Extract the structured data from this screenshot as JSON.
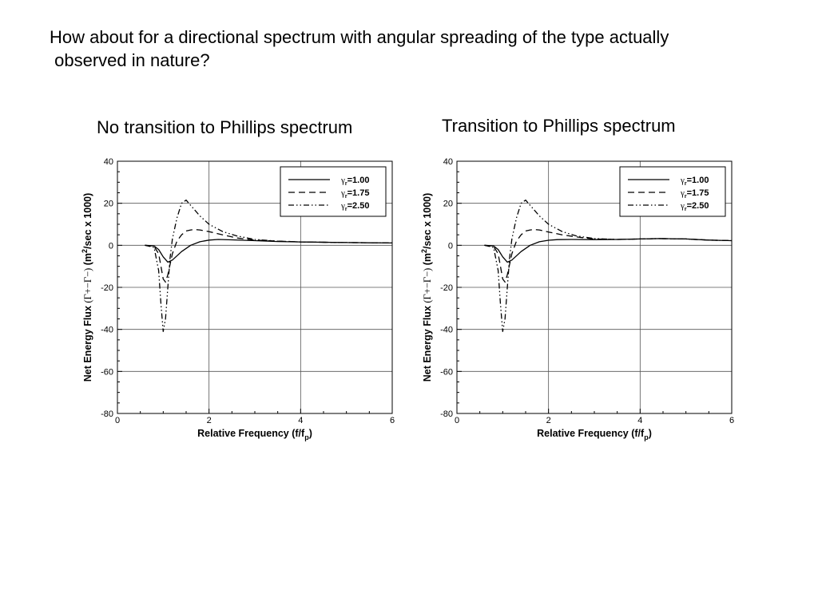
{
  "slide": {
    "title": "How about for a directional spectrum with angular spreading of the type actually\n observed in nature?"
  },
  "chart_data": [
    {
      "type": "line",
      "title": "No transition to Phillips spectrum",
      "xlabel": "Relative Frequency (f/fp)",
      "xlabel_main": "Relative Frequency (f/f",
      "xlabel_sub": "p",
      "xlabel_end": ")",
      "ylabel": "Net Energy Flux (Γ+−Γ−) (m2/sec x 1000)",
      "ylabel_main": "Net Energy Flux",
      "ylabel_gamma": "(Γ+−Γ−)",
      "ylabel_unit_a": "(m",
      "ylabel_unit_sup": "2",
      "ylabel_unit_b": "/sec  x 1000)",
      "xlim": [
        0,
        6
      ],
      "ylim": [
        -80,
        40
      ],
      "xticks": [
        0,
        2,
        4,
        6
      ],
      "yticks": [
        -80,
        -60,
        -40,
        -20,
        0,
        20,
        40
      ],
      "grid": true,
      "legend_position": "top-right",
      "series": [
        {
          "name": "γr=1.00",
          "name_sym": "γ",
          "name_sub": "r",
          "name_rest": "=1.00",
          "dash": "solid",
          "x": [
            0.6,
            0.8,
            0.9,
            1.0,
            1.1,
            1.2,
            1.4,
            1.6,
            1.8,
            2.0,
            2.2,
            2.5,
            3.0,
            3.5,
            4.0,
            5.0,
            6.0
          ],
          "y": [
            0,
            -0.3,
            -2,
            -5.5,
            -8,
            -7,
            -3,
            0,
            1.7,
            2.5,
            2.8,
            2.6,
            2.2,
            1.8,
            1.6,
            1.3,
            1.1
          ]
        },
        {
          "name": "γr=1.75",
          "name_sym": "γ",
          "name_sub": "r",
          "name_rest": "=1.75",
          "dash": "dash",
          "x": [
            0.6,
            0.8,
            0.9,
            0.95,
            1.0,
            1.05,
            1.1,
            1.2,
            1.3,
            1.4,
            1.5,
            1.6,
            1.7,
            1.8,
            2.0,
            2.3,
            2.6,
            3.0,
            3.5,
            4.0,
            5.0,
            6.0
          ],
          "y": [
            0,
            -0.5,
            -4,
            -10,
            -16,
            -17.5,
            -14,
            -4,
            2,
            5,
            6.8,
            7.3,
            7.5,
            7.3,
            6.5,
            5,
            3.5,
            2.5,
            2,
            1.6,
            1.3,
            1.1
          ]
        },
        {
          "name": "γr=2.50",
          "name_sym": "γ",
          "name_sub": "r",
          "name_rest": "=2.50",
          "dash": "dashdotdot",
          "x": [
            0.6,
            0.8,
            0.9,
            0.95,
            1.0,
            1.05,
            1.1,
            1.15,
            1.2,
            1.3,
            1.4,
            1.5,
            1.6,
            1.8,
            2.0,
            2.3,
            2.6,
            3.0,
            3.5,
            4.0,
            5.0,
            6.0
          ],
          "y": [
            0,
            -1,
            -12,
            -28,
            -41,
            -35,
            -20,
            -6,
            3,
            13,
            20,
            21.5,
            19,
            14,
            10,
            6.5,
            4.5,
            2.8,
            2,
            1.6,
            1.3,
            1.1
          ]
        }
      ]
    },
    {
      "type": "line",
      "title": "Transition to Phillips spectrum",
      "xlabel": "Relative Frequency (f/fp)",
      "xlabel_main": "Relative Frequency (f/f",
      "xlabel_sub": "p",
      "xlabel_end": ")",
      "ylabel": "Net Energy Flux (Γ+−Γ−) (m2/sec x 1000)",
      "ylabel_main": "Net Energy Flux",
      "ylabel_gamma": "(Γ+−Γ−)",
      "ylabel_unit_a": "(m",
      "ylabel_unit_sup": "2",
      "ylabel_unit_b": "/sec  x 1000)",
      "xlim": [
        0,
        6
      ],
      "ylim": [
        -80,
        40
      ],
      "xticks": [
        0,
        2,
        4,
        6
      ],
      "yticks": [
        -80,
        -60,
        -40,
        -20,
        0,
        20,
        40
      ],
      "grid": true,
      "legend_position": "top-right",
      "series": [
        {
          "name": "γr=1.00",
          "name_sym": "γ",
          "name_sub": "r",
          "name_rest": "=1.00",
          "dash": "solid",
          "x": [
            0.6,
            0.8,
            0.9,
            1.0,
            1.1,
            1.2,
            1.4,
            1.6,
            1.8,
            2.0,
            2.2,
            2.5,
            3.0,
            3.5,
            4.0,
            4.4,
            5.0,
            5.5,
            6.0
          ],
          "y": [
            0,
            -0.3,
            -2,
            -5.5,
            -8,
            -7,
            -3,
            0,
            1.7,
            2.4,
            2.7,
            2.8,
            2.7,
            2.8,
            3.0,
            3.2,
            3.0,
            2.5,
            2.2
          ]
        },
        {
          "name": "γr=1.75",
          "name_sym": "γ",
          "name_sub": "r",
          "name_rest": "=1.75",
          "dash": "dash",
          "x": [
            0.6,
            0.8,
            0.9,
            0.95,
            1.0,
            1.05,
            1.1,
            1.2,
            1.3,
            1.4,
            1.5,
            1.6,
            1.7,
            1.8,
            2.0,
            2.3,
            2.6,
            3.0,
            3.5,
            4.0,
            4.4,
            5.0,
            5.5,
            6.0
          ],
          "y": [
            0,
            -0.5,
            -4,
            -10,
            -16,
            -17.5,
            -14,
            -4,
            2,
            5,
            6.8,
            7.3,
            7.5,
            7.3,
            6.3,
            5,
            4,
            3,
            2.8,
            3.0,
            3.2,
            3.0,
            2.5,
            2.2
          ]
        },
        {
          "name": "γr=2.50",
          "name_sym": "γ",
          "name_sub": "r",
          "name_rest": "=2.50",
          "dash": "dashdotdot",
          "x": [
            0.6,
            0.8,
            0.9,
            0.95,
            1.0,
            1.05,
            1.1,
            1.15,
            1.2,
            1.3,
            1.4,
            1.5,
            1.6,
            1.8,
            2.0,
            2.3,
            2.6,
            3.0,
            3.5,
            4.0,
            4.4,
            5.0,
            5.5,
            6.0
          ],
          "y": [
            0,
            -1,
            -12,
            -28,
            -41,
            -35,
            -20,
            -6,
            3,
            13,
            20,
            21.5,
            19,
            14,
            10,
            6.5,
            4.5,
            3.2,
            2.8,
            3.0,
            3.2,
            3.0,
            2.5,
            2.2
          ]
        }
      ]
    }
  ]
}
